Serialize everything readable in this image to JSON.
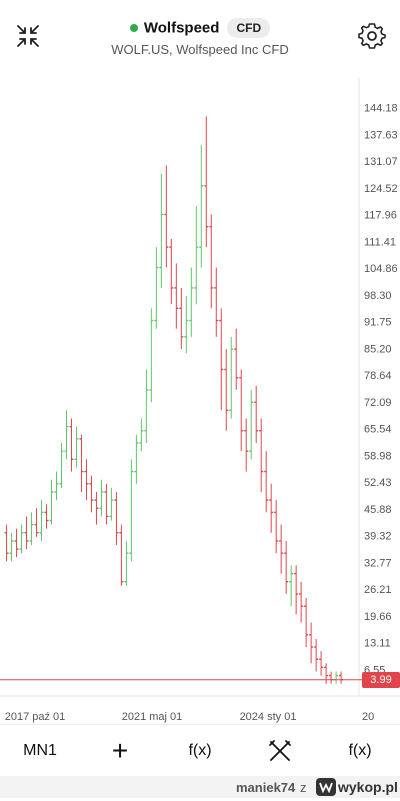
{
  "header": {
    "symbol": "Wolfspeed",
    "badge": "CFD",
    "subtitle": "WOLF.US, Wolfspeed Inc CFD",
    "status_color": "#2fa84f"
  },
  "icons": {
    "collapse": "collapse-arrows-icon",
    "settings": "gear-icon"
  },
  "chart_data": {
    "type": "candlestick",
    "y_ticks": [
      "144.18",
      "137.63",
      "131.07",
      "124.52",
      "117.96",
      "111.41",
      "104.86",
      "98.30",
      "91.75",
      "85.20",
      "78.64",
      "72.09",
      "65.54",
      "58.98",
      "52.43",
      "45.88",
      "39.32",
      "32.77",
      "26.21",
      "19.66",
      "13.11",
      "6.55"
    ],
    "x_ticks": [
      "2017 paź 01",
      "2021 maj 01",
      "2024 sty 01",
      "20"
    ],
    "last_price": "3.99",
    "up_color": "#5cc86b",
    "down_color": "#e0454b",
    "ylim": [
      0,
      148
    ],
    "candles": [
      [
        0,
        40,
        35,
        42,
        33
      ],
      [
        1,
        35,
        38,
        40,
        33
      ],
      [
        2,
        38,
        36,
        41,
        34
      ],
      [
        3,
        36,
        40,
        42,
        35
      ],
      [
        4,
        40,
        38,
        44,
        36
      ],
      [
        5,
        38,
        42,
        45,
        37
      ],
      [
        6,
        42,
        40,
        46,
        39
      ],
      [
        7,
        40,
        45,
        48,
        38
      ],
      [
        8,
        45,
        43,
        47,
        41
      ],
      [
        9,
        43,
        50,
        53,
        42
      ],
      [
        10,
        50,
        52,
        55,
        48
      ],
      [
        11,
        52,
        60,
        62,
        51
      ],
      [
        12,
        60,
        66,
        70,
        58
      ],
      [
        13,
        66,
        58,
        68,
        55
      ],
      [
        14,
        58,
        63,
        66,
        56
      ],
      [
        15,
        63,
        55,
        64,
        50
      ],
      [
        16,
        55,
        52,
        58,
        48
      ],
      [
        17,
        52,
        48,
        54,
        45
      ],
      [
        18,
        48,
        46,
        50,
        42
      ],
      [
        19,
        46,
        50,
        53,
        44
      ],
      [
        20,
        50,
        44,
        52,
        42
      ],
      [
        21,
        44,
        48,
        51,
        43
      ],
      [
        22,
        48,
        40,
        50,
        37
      ],
      [
        23,
        40,
        28,
        42,
        27
      ],
      [
        24,
        28,
        35,
        38,
        27
      ],
      [
        25,
        35,
        55,
        58,
        33
      ],
      [
        26,
        55,
        62,
        64,
        52
      ],
      [
        27,
        62,
        65,
        68,
        60
      ],
      [
        28,
        65,
        75,
        80,
        62
      ],
      [
        29,
        75,
        92,
        95,
        72
      ],
      [
        30,
        92,
        105,
        110,
        90
      ],
      [
        31,
        105,
        118,
        128,
        100
      ],
      [
        32,
        118,
        110,
        130,
        105
      ],
      [
        33,
        110,
        100,
        112,
        96
      ],
      [
        34,
        100,
        95,
        106,
        90
      ],
      [
        35,
        95,
        88,
        100,
        85
      ],
      [
        36,
        88,
        92,
        98,
        84
      ],
      [
        37,
        92,
        100,
        105,
        88
      ],
      [
        38,
        100,
        110,
        120,
        96
      ],
      [
        39,
        110,
        125,
        135,
        105
      ],
      [
        40,
        125,
        115,
        142,
        110
      ],
      [
        41,
        115,
        100,
        118,
        95
      ],
      [
        42,
        100,
        92,
        105,
        88
      ],
      [
        43,
        92,
        80,
        95,
        70
      ],
      [
        44,
        80,
        70,
        85,
        65
      ],
      [
        45,
        70,
        85,
        88,
        68
      ],
      [
        46,
        85,
        78,
        90,
        75
      ],
      [
        47,
        78,
        65,
        80,
        60
      ],
      [
        48,
        65,
        60,
        68,
        55
      ],
      [
        49,
        60,
        72,
        75,
        58
      ],
      [
        50,
        72,
        65,
        76,
        62
      ],
      [
        51,
        65,
        55,
        68,
        50
      ],
      [
        52,
        55,
        48,
        60,
        45
      ],
      [
        53,
        48,
        45,
        52,
        40
      ],
      [
        54,
        45,
        38,
        48,
        35
      ],
      [
        55,
        38,
        35,
        42,
        30
      ],
      [
        56,
        35,
        28,
        38,
        25
      ],
      [
        57,
        28,
        30,
        32,
        22
      ],
      [
        58,
        30,
        25,
        32,
        20
      ],
      [
        59,
        25,
        22,
        28,
        18
      ],
      [
        60,
        22,
        15,
        24,
        12
      ],
      [
        61,
        15,
        12,
        18,
        8
      ],
      [
        62,
        12,
        9,
        14,
        6
      ],
      [
        63,
        9,
        7,
        11,
        5
      ],
      [
        64,
        7,
        5,
        8,
        3
      ],
      [
        65,
        5,
        4,
        6,
        3
      ],
      [
        66,
        4,
        5,
        6,
        3
      ],
      [
        67,
        5,
        4,
        6,
        3
      ]
    ]
  },
  "toolbar": {
    "timeframe": "MN1",
    "add_label": "+",
    "indicators_label": "f(x)",
    "drawing_icon": "drawing-tools-icon",
    "studies_label": "f(x)"
  },
  "footer": {
    "username": "maniek74",
    "separator": "z",
    "brand": "wykop.pl"
  }
}
